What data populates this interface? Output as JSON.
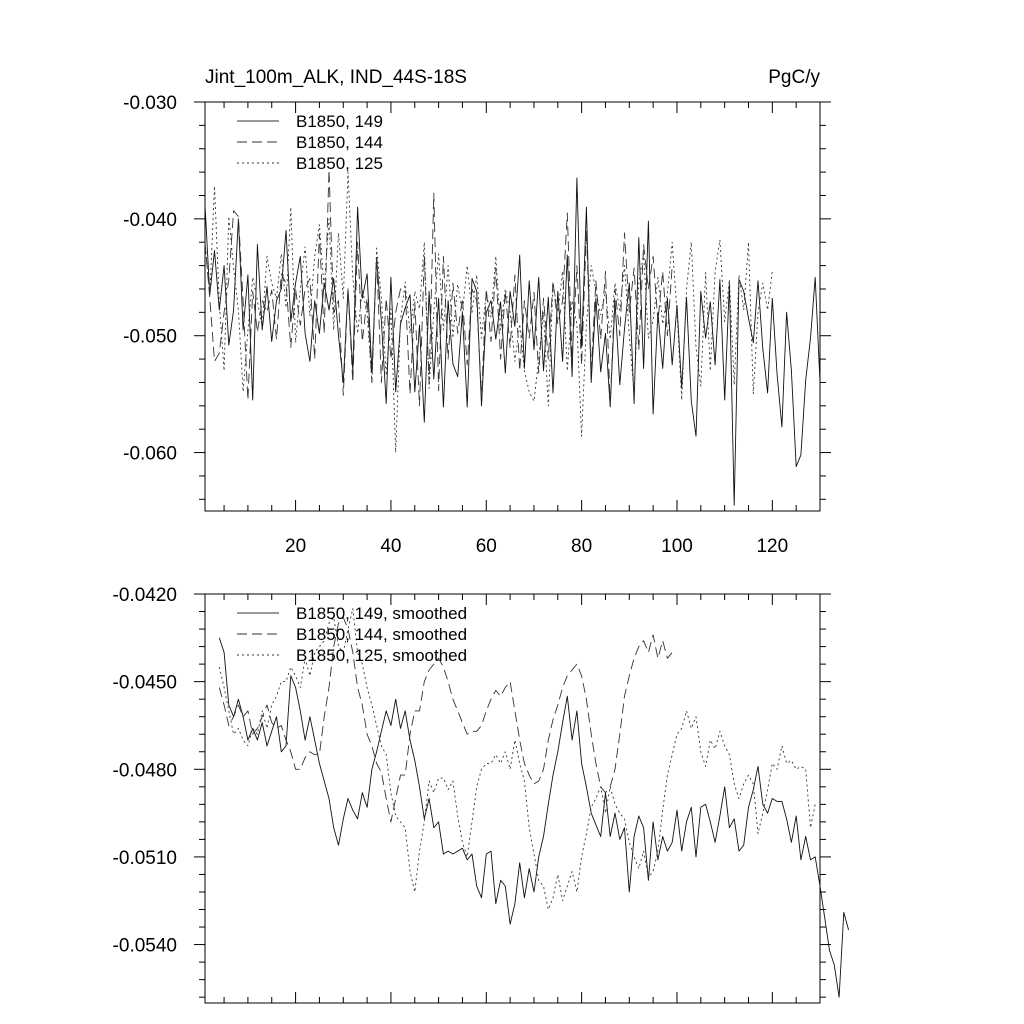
{
  "header": {
    "title": "Jint_100m_ALK, IND_44S-18S",
    "units": "PgC/y"
  },
  "chart_data": [
    {
      "type": "line",
      "title": "Jint_100m_ALK, IND_44S-18S",
      "units": "PgC/y",
      "xlim": [
        1,
        130
      ],
      "ylim": [
        -0.065,
        -0.03
      ],
      "xticks": [
        20,
        40,
        60,
        80,
        100,
        120
      ],
      "xtick_labels": [
        "20",
        "40",
        "60",
        "80",
        "100",
        "120"
      ],
      "yticks": [
        -0.03,
        -0.04,
        -0.05,
        -0.06
      ],
      "ytick_labels": [
        "-0.030",
        "-0.040",
        "-0.050",
        "-0.060"
      ],
      "legend_position": "top-left",
      "grid": false,
      "series": [
        {
          "name": "B1850, 149",
          "style": "solid",
          "x_start": 1,
          "values": [
            -0.0388,
            -0.0465,
            -0.0427,
            -0.0478,
            -0.044,
            -0.0508,
            -0.0478,
            -0.04,
            -0.0495,
            -0.0448,
            -0.0555,
            -0.0422,
            -0.0495,
            -0.0458,
            -0.0505,
            -0.047,
            -0.046,
            -0.041,
            -0.0488,
            -0.0455,
            -0.0432,
            -0.0498,
            -0.0522,
            -0.047,
            -0.0498,
            -0.0455,
            -0.0478,
            -0.0451,
            -0.05,
            -0.054,
            -0.046,
            -0.053,
            -0.039,
            -0.0468,
            -0.0447,
            -0.0531,
            -0.0433,
            -0.0488,
            -0.0558,
            -0.045,
            -0.0548,
            -0.049,
            -0.0476,
            -0.0465,
            -0.0548,
            -0.0491,
            -0.0574,
            -0.0462,
            -0.0537,
            -0.0468,
            -0.0561,
            -0.047,
            -0.0524,
            -0.0535,
            -0.048,
            -0.0561,
            -0.0451,
            -0.0462,
            -0.056,
            -0.048,
            -0.047,
            -0.0503,
            -0.0471,
            -0.0532,
            -0.0462,
            -0.0492,
            -0.0431,
            -0.0528,
            -0.0453,
            -0.0512,
            -0.045,
            -0.053,
            -0.0467,
            -0.0549,
            -0.0462,
            -0.0522,
            -0.0431,
            -0.0535,
            -0.0365,
            -0.051,
            -0.039,
            -0.054,
            -0.0468,
            -0.0531,
            -0.0498,
            -0.0561,
            -0.047,
            -0.0542,
            -0.0494,
            -0.0455,
            -0.0558,
            -0.0416,
            -0.0528,
            -0.0402,
            -0.0567,
            -0.048,
            -0.0528,
            -0.0468,
            -0.0525,
            -0.0474,
            -0.0545,
            -0.0467,
            -0.0556,
            -0.0586,
            -0.0462,
            -0.0502,
            -0.0471,
            -0.0525,
            -0.0452,
            -0.0555,
            -0.0455,
            -0.0645,
            -0.0452,
            -0.0462,
            -0.0485,
            -0.0506,
            -0.0453,
            -0.0511,
            -0.0549,
            -0.0468,
            -0.0533,
            -0.0578,
            -0.048,
            -0.053,
            -0.0612,
            -0.0602,
            -0.0538,
            -0.0502,
            -0.045,
            -0.054
          ]
        },
        {
          "name": "B1850, 144",
          "style": "dashed",
          "x_start": 1,
          "values": [
            -0.042,
            -0.0468,
            -0.0522,
            -0.0515,
            -0.048,
            -0.0452,
            -0.0393,
            -0.0398,
            -0.047,
            -0.0555,
            -0.0462,
            -0.0497,
            -0.047,
            -0.048,
            -0.0461,
            -0.0503,
            -0.0447,
            -0.0455,
            -0.051,
            -0.046,
            -0.0491,
            -0.046,
            -0.0451,
            -0.052,
            -0.0413,
            -0.0498,
            -0.0358,
            -0.048,
            -0.047,
            -0.0551,
            -0.046,
            -0.054,
            -0.042,
            -0.0505,
            -0.0468,
            -0.054,
            -0.0432,
            -0.054,
            -0.0468,
            -0.052,
            -0.048,
            -0.046,
            -0.046,
            -0.055,
            -0.0471,
            -0.056,
            -0.0432,
            -0.054,
            -0.0378,
            -0.0547,
            -0.0432,
            -0.052,
            -0.0455,
            -0.0498,
            -0.0468,
            -0.0525,
            -0.046,
            -0.047,
            -0.0552,
            -0.046,
            -0.0505,
            -0.0442,
            -0.052,
            -0.0462,
            -0.051,
            -0.0448,
            -0.053,
            -0.047,
            -0.0502,
            -0.0463,
            -0.0532,
            -0.0468,
            -0.052,
            -0.0453,
            -0.049,
            -0.047,
            -0.0395,
            -0.052,
            -0.044,
            -0.0525,
            -0.041,
            -0.053,
            -0.0453,
            -0.0503,
            -0.0445,
            -0.056,
            -0.046,
            -0.05,
            -0.0412,
            -0.048,
            -0.0442,
            -0.0512,
            -0.0422,
            -0.046,
            -0.0432,
            -0.0488,
            -0.0445,
            -0.05,
            -0.044
          ]
        },
        {
          "name": "B1850, 125",
          "style": "dotted",
          "x_start": 1,
          "values": [
            -0.042,
            -0.0466,
            -0.0372,
            -0.0472,
            -0.053,
            -0.0398,
            -0.0442,
            -0.0478,
            -0.0548,
            -0.0496,
            -0.045,
            -0.047,
            -0.0493,
            -0.0432,
            -0.0455,
            -0.0468,
            -0.043,
            -0.0476,
            -0.039,
            -0.0506,
            -0.046,
            -0.0424,
            -0.0483,
            -0.0432,
            -0.0405,
            -0.046,
            -0.04,
            -0.0495,
            -0.0412,
            -0.0468,
            -0.036,
            -0.045,
            -0.0498,
            -0.046,
            -0.0481,
            -0.054,
            -0.0425,
            -0.0468,
            -0.0534,
            -0.0477,
            -0.06,
            -0.0486,
            -0.0454,
            -0.0498,
            -0.0462,
            -0.0477,
            -0.042,
            -0.0545,
            -0.048,
            -0.043,
            -0.0495,
            -0.044,
            -0.0502,
            -0.0456,
            -0.048,
            -0.044,
            -0.048,
            -0.0448,
            -0.0502,
            -0.0463,
            -0.0484,
            -0.0432,
            -0.0495,
            -0.046,
            -0.048,
            -0.0522,
            -0.049,
            -0.053,
            -0.0548,
            -0.0556,
            -0.052,
            -0.048,
            -0.056,
            -0.0455,
            -0.048,
            -0.0445,
            -0.053,
            -0.047,
            -0.049,
            -0.0586,
            -0.049,
            -0.044,
            -0.0462,
            -0.0482,
            -0.0462,
            -0.0503,
            -0.0455,
            -0.0478,
            -0.044,
            -0.05,
            -0.055,
            -0.0455,
            -0.043,
            -0.0502,
            -0.0487,
            -0.045,
            -0.049,
            -0.0464,
            -0.042,
            -0.048,
            -0.0555,
            -0.046,
            -0.042,
            -0.051,
            -0.0543,
            -0.0446,
            -0.053,
            -0.0445,
            -0.0418,
            -0.0488,
            -0.0452,
            -0.0542,
            -0.0448,
            -0.0478,
            -0.042,
            -0.055,
            -0.048,
            -0.0455,
            -0.0478,
            -0.0445
          ]
        }
      ]
    },
    {
      "type": "line",
      "xlim": [
        1,
        130
      ],
      "ylim": [
        -0.056,
        -0.042
      ],
      "xticks": [
        20,
        40,
        60,
        80,
        100,
        120
      ],
      "yticks": [
        -0.042,
        -0.045,
        -0.048,
        -0.051,
        -0.054
      ],
      "ytick_labels": [
        "-0.0420",
        "-0.0450",
        "-0.0480",
        "-0.0510",
        "-0.0540"
      ],
      "legend_position": "top-left",
      "grid": false,
      "series": [
        {
          "name": "B1850, 149, smoothed",
          "style": "solid",
          "x_start": 4,
          "values": [
            -0.0435,
            -0.044,
            -0.0458,
            -0.0462,
            -0.0456,
            -0.0462,
            -0.047,
            -0.0466,
            -0.047,
            -0.0464,
            -0.0472,
            -0.0467,
            -0.0462,
            -0.0474,
            -0.0472,
            -0.0448,
            -0.0452,
            -0.046,
            -0.047,
            -0.0462,
            -0.047,
            -0.0478,
            -0.0484,
            -0.049,
            -0.05,
            -0.0506,
            -0.0497,
            -0.049,
            -0.0494,
            -0.0497,
            -0.0488,
            -0.0493,
            -0.048,
            -0.0474,
            -0.0467,
            -0.046,
            -0.0465,
            -0.0456,
            -0.0466,
            -0.046,
            -0.047,
            -0.0477,
            -0.0486,
            -0.0497,
            -0.049,
            -0.05,
            -0.0498,
            -0.0509,
            -0.0508,
            -0.0509,
            -0.0508,
            -0.0507,
            -0.0511,
            -0.0509,
            -0.052,
            -0.0524,
            -0.0509,
            -0.0508,
            -0.0526,
            -0.0518,
            -0.052,
            -0.0533,
            -0.0526,
            -0.0512,
            -0.0524,
            -0.0514,
            -0.0522,
            -0.051,
            -0.0503,
            -0.0492,
            -0.0482,
            -0.0474,
            -0.0464,
            -0.0455,
            -0.047,
            -0.046,
            -0.0478,
            -0.0486,
            -0.0495,
            -0.0499,
            -0.0503,
            -0.0488,
            -0.0503,
            -0.0495,
            -0.0504,
            -0.05,
            -0.0522,
            -0.0503,
            -0.0496,
            -0.05,
            -0.0518,
            -0.0498,
            -0.0511,
            -0.0503,
            -0.0508,
            -0.0505,
            -0.0494,
            -0.0508,
            -0.0498,
            -0.0493,
            -0.051,
            -0.0493,
            -0.0492,
            -0.0498,
            -0.0505,
            -0.0496,
            -0.0486,
            -0.05,
            -0.0497,
            -0.0508,
            -0.0506,
            -0.0493,
            -0.0487,
            -0.0479,
            -0.0492,
            -0.0495,
            -0.049,
            -0.0491,
            -0.0491,
            -0.0497,
            -0.0505,
            -0.0496,
            -0.0511,
            -0.0503,
            -0.0511,
            -0.051,
            -0.052,
            -0.0531,
            -0.0542,
            -0.0547,
            -0.0558,
            -0.0529,
            -0.0535
          ]
        },
        {
          "name": "B1850, 144, smoothed",
          "style": "dashed",
          "x_start": 4,
          "values": [
            -0.0452,
            -0.0458,
            -0.0465,
            -0.0462,
            -0.0458,
            -0.0462,
            -0.046,
            -0.0468,
            -0.0466,
            -0.0462,
            -0.0458,
            -0.0464,
            -0.0466,
            -0.0465,
            -0.047,
            -0.0474,
            -0.048,
            -0.048,
            -0.0476,
            -0.0474,
            -0.0475,
            -0.0475,
            -0.0462,
            -0.0452,
            -0.0438,
            -0.043,
            -0.0428,
            -0.0432,
            -0.044,
            -0.0452,
            -0.0458,
            -0.0468,
            -0.0472,
            -0.0478,
            -0.0481,
            -0.049,
            -0.0498,
            -0.049,
            -0.0482,
            -0.0482,
            -0.0468,
            -0.046,
            -0.046,
            -0.045,
            -0.0446,
            -0.0444,
            -0.0442,
            -0.0445,
            -0.045,
            -0.0456,
            -0.046,
            -0.0464,
            -0.0468,
            -0.0467,
            -0.0467,
            -0.0465,
            -0.046,
            -0.0456,
            -0.0453,
            -0.0455,
            -0.0452,
            -0.045,
            -0.046,
            -0.047,
            -0.0478,
            -0.0482,
            -0.0485,
            -0.0484,
            -0.048,
            -0.047,
            -0.0463,
            -0.0458,
            -0.0452,
            -0.0448,
            -0.0446,
            -0.0444,
            -0.0448,
            -0.0456,
            -0.0468,
            -0.0478,
            -0.0486,
            -0.0488,
            -0.0486,
            -0.048,
            -0.0468,
            -0.0455,
            -0.0448,
            -0.0442,
            -0.0438,
            -0.0436,
            -0.044,
            -0.0434,
            -0.0442,
            -0.0436,
            -0.0442,
            -0.044
          ]
        },
        {
          "name": "B1850, 125, smoothed",
          "style": "dotted",
          "x_start": 4,
          "values": [
            -0.0445,
            -0.0452,
            -0.046,
            -0.0468,
            -0.0466,
            -0.047,
            -0.0472,
            -0.0466,
            -0.0468,
            -0.046,
            -0.0466,
            -0.0458,
            -0.0455,
            -0.045,
            -0.045,
            -0.0445,
            -0.0448,
            -0.0452,
            -0.0442,
            -0.0448,
            -0.044,
            -0.0438,
            -0.0436,
            -0.043,
            -0.0428,
            -0.0438,
            -0.044,
            -0.0432,
            -0.0425,
            -0.044,
            -0.0444,
            -0.0452,
            -0.0458,
            -0.0465,
            -0.0472,
            -0.0475,
            -0.0488,
            -0.0496,
            -0.0498,
            -0.05,
            -0.0515,
            -0.0522,
            -0.0508,
            -0.0498,
            -0.0484,
            -0.0488,
            -0.0483,
            -0.0483,
            -0.0487,
            -0.0484,
            -0.0496,
            -0.0505,
            -0.051,
            -0.0498,
            -0.0486,
            -0.048,
            -0.0478,
            -0.0478,
            -0.0475,
            -0.0478,
            -0.0474,
            -0.048,
            -0.047,
            -0.0478,
            -0.0484,
            -0.05,
            -0.0509,
            -0.0518,
            -0.052,
            -0.0528,
            -0.0524,
            -0.0516,
            -0.0525,
            -0.052,
            -0.0515,
            -0.0522,
            -0.051,
            -0.0502,
            -0.0493,
            -0.049,
            -0.0486,
            -0.0495,
            -0.0486,
            -0.0492,
            -0.0495,
            -0.0497,
            -0.0505,
            -0.051,
            -0.0514,
            -0.0508,
            -0.0517,
            -0.0515,
            -0.0508,
            -0.0494,
            -0.0482,
            -0.0475,
            -0.0468,
            -0.0466,
            -0.046,
            -0.0466,
            -0.0462,
            -0.0474,
            -0.0479,
            -0.047,
            -0.0473,
            -0.0467,
            -0.0472,
            -0.0475,
            -0.0485,
            -0.049,
            -0.0485,
            -0.0482,
            -0.0485,
            -0.0502,
            -0.0495,
            -0.0487,
            -0.0478,
            -0.048,
            -0.0472,
            -0.0478,
            -0.0477,
            -0.048,
            -0.0479,
            -0.048,
            -0.05,
            -0.0492
          ]
        }
      ]
    }
  ]
}
